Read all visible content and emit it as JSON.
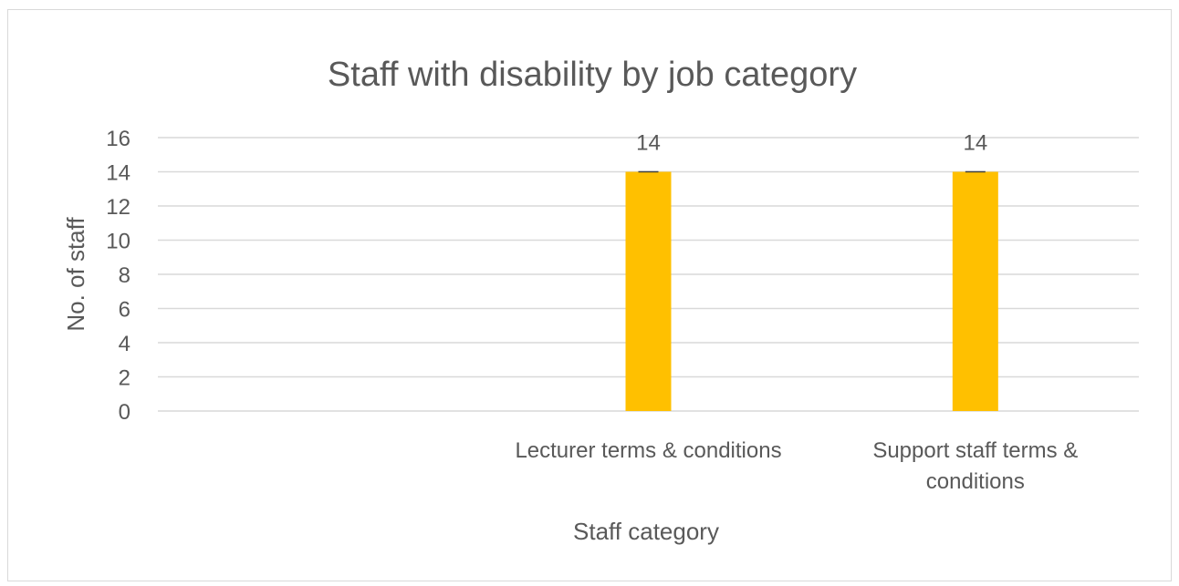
{
  "chart_data": {
    "type": "bar",
    "title": "Staff with disability by job category",
    "xlabel": "Staff category",
    "ylabel": "No. of staff",
    "categories": [
      "",
      "Lecturer terms & conditions",
      "Support staff terms & conditions"
    ],
    "category_lines": [
      [],
      [
        "Lecturer terms & conditions"
      ],
      [
        "Support staff terms &",
        "conditions"
      ]
    ],
    "series": [
      {
        "values": [
          0,
          14,
          14
        ],
        "data_labels": [
          "",
          "14",
          "14"
        ]
      }
    ],
    "ylim": [
      0,
      16
    ],
    "yticks": [
      "0",
      "2",
      "4",
      "6",
      "8",
      "10",
      "12",
      "14",
      "16"
    ],
    "grid": true,
    "legend": "none",
    "error_bars": true,
    "colors": {
      "bar": "#ffc000",
      "grid": "#d9d9d9",
      "text": "#595959",
      "error_bar": "#404040"
    }
  }
}
